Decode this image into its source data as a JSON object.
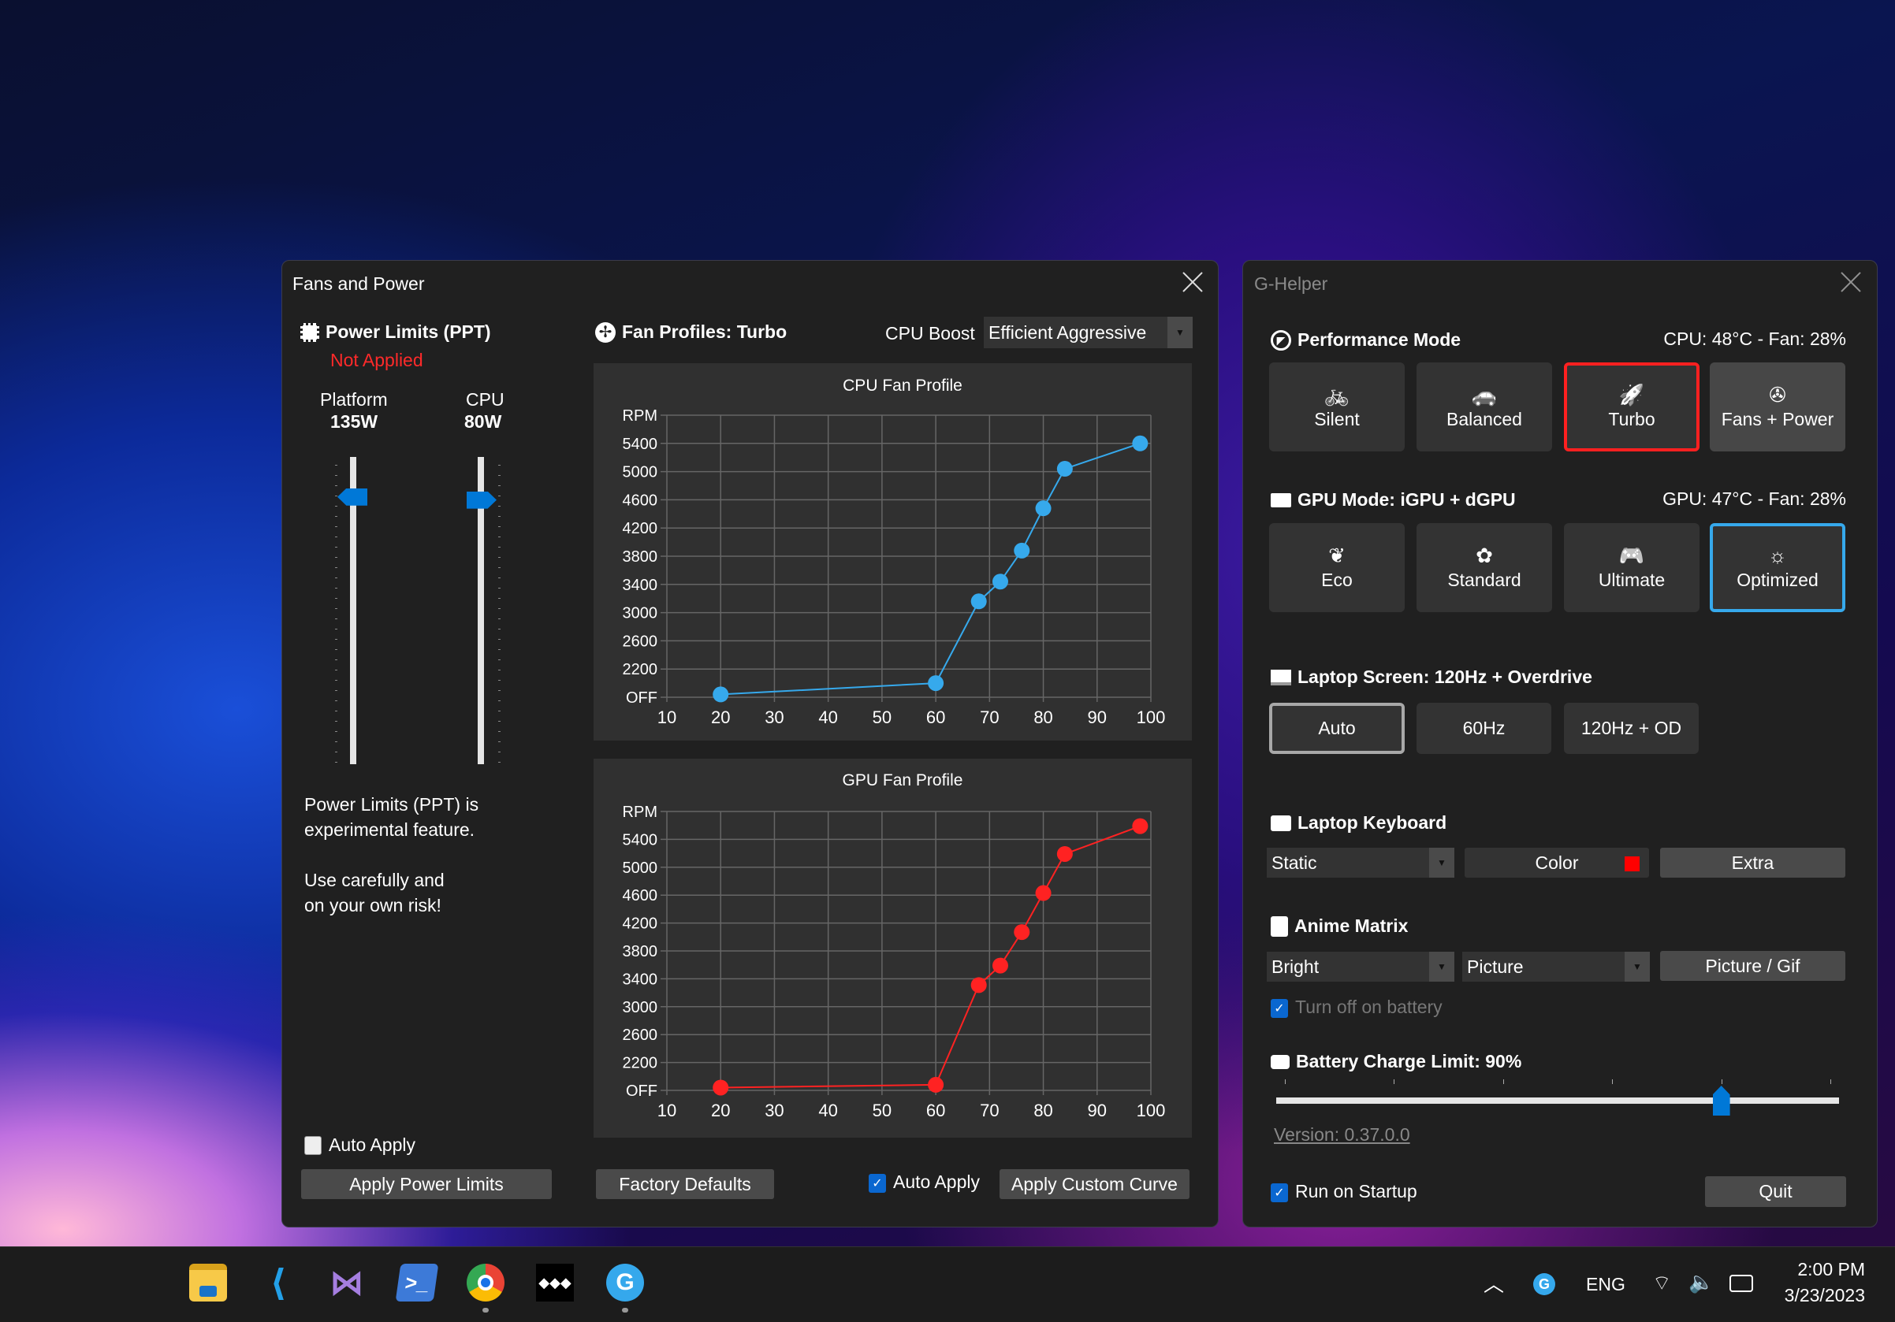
{
  "fans_window": {
    "title": "Fans and Power",
    "power_limits": {
      "title": "Power Limits (PPT)",
      "status": "Not Applied",
      "platform": {
        "label": "Platform",
        "value": "135W",
        "level": 0.87
      },
      "cpu": {
        "label": "CPU",
        "value": "80W",
        "level": 0.86
      },
      "note": [
        "Power Limits (PPT) is",
        "experimental feature.",
        "Use carefully and",
        "on your own risk!"
      ],
      "auto_apply": {
        "label": "Auto Apply",
        "checked": false
      },
      "apply_button": "Apply Power Limits"
    },
    "fan_profiles": {
      "title": "Fan Profiles: Turbo",
      "cpu_boost_label": "CPU Boost",
      "cpu_boost_value": "Efficient Aggressive",
      "factory_defaults": "Factory Defaults",
      "auto_apply": {
        "label": "Auto Apply",
        "checked": true
      },
      "apply_curve": "Apply Custom Curve"
    }
  },
  "chart_data": [
    {
      "type": "line",
      "title": "CPU Fan Profile",
      "color": "#36a9ec",
      "x_ticks": [
        10,
        20,
        30,
        40,
        50,
        60,
        70,
        80,
        90,
        100
      ],
      "xlim": [
        10,
        100
      ],
      "y_ticks": [
        "OFF",
        "2200",
        "2600",
        "3000",
        "3400",
        "3800",
        "4200",
        "4600",
        "5000",
        "5400",
        "RPM"
      ],
      "grid": true,
      "x": [
        20,
        60,
        68,
        72,
        76,
        80,
        84,
        98
      ],
      "y": [
        220,
        1100,
        3160,
        3440,
        3880,
        4480,
        5040,
        5400
      ]
    },
    {
      "type": "line",
      "title": "GPU Fan Profile",
      "color": "#ff2222",
      "x_ticks": [
        10,
        20,
        30,
        40,
        50,
        60,
        70,
        80,
        90,
        100
      ],
      "xlim": [
        10,
        100
      ],
      "y_ticks": [
        "OFF",
        "2200",
        "2600",
        "3000",
        "3400",
        "3800",
        "4200",
        "4600",
        "5000",
        "5400",
        "RPM"
      ],
      "grid": true,
      "x": [
        20,
        60,
        68,
        72,
        76,
        80,
        84,
        98
      ],
      "y": [
        220,
        440,
        3310,
        3590,
        4070,
        4630,
        5190,
        5590
      ]
    }
  ],
  "ghelper": {
    "title": "G-Helper",
    "performance": {
      "title": "Performance Mode",
      "status": "CPU: 48°C -  Fan: 28%",
      "modes": [
        {
          "label": "Silent",
          "icon": "bicycle-icon",
          "glyph": "🚲"
        },
        {
          "label": "Balanced",
          "icon": "car-icon",
          "glyph": "🚗"
        },
        {
          "label": "Turbo",
          "icon": "rocket-icon",
          "glyph": "🚀"
        },
        {
          "label": "Fans + Power",
          "icon": "fan-icon",
          "glyph": "✇"
        }
      ],
      "selected": "Turbo",
      "selected_color": "#ff2020"
    },
    "gpu": {
      "title": "GPU Mode: iGPU + dGPU",
      "status": "GPU: 47°C -  Fan: 28%",
      "modes": [
        {
          "label": "Eco",
          "icon": "leaf-icon",
          "glyph": "❦"
        },
        {
          "label": "Standard",
          "icon": "flower-icon",
          "glyph": "✿"
        },
        {
          "label": "Ultimate",
          "icon": "gamepad-icon",
          "glyph": "🎮"
        },
        {
          "label": "Optimized",
          "icon": "lightbulb-gear-icon",
          "glyph": "☼"
        }
      ],
      "selected": "Optimized",
      "selected_color": "#36a9ec"
    },
    "screen": {
      "title": "Laptop Screen: 120Hz + Overdrive",
      "options": [
        "Auto",
        "60Hz",
        "120Hz + OD"
      ],
      "selected": "Auto"
    },
    "keyboard": {
      "title": "Laptop Keyboard",
      "mode": "Static",
      "color_label": "Color",
      "color": "#ff0000",
      "extra": "Extra"
    },
    "anime": {
      "title": "Anime Matrix",
      "brightness": "Bright",
      "mode": "Picture",
      "picture_button": "Picture / Gif",
      "turn_off_battery": {
        "label": "Turn off on battery",
        "checked": true
      }
    },
    "battery": {
      "title": "Battery Charge Limit: 90%",
      "limit": 90,
      "min": 50,
      "max": 100
    },
    "version": "Version: 0.37.0.0",
    "run_on_startup": {
      "label": "Run on Startup",
      "checked": true
    },
    "quit": "Quit"
  },
  "taskbar": {
    "apps": [
      "start-icon",
      "file-explorer-icon",
      "vscode-icon",
      "visual-studio-icon",
      "powershell-icon",
      "chrome-icon",
      "tidal-icon",
      "g-helper-icon"
    ],
    "language": "ENG",
    "time": "2:00 PM",
    "date": "3/23/2023"
  }
}
